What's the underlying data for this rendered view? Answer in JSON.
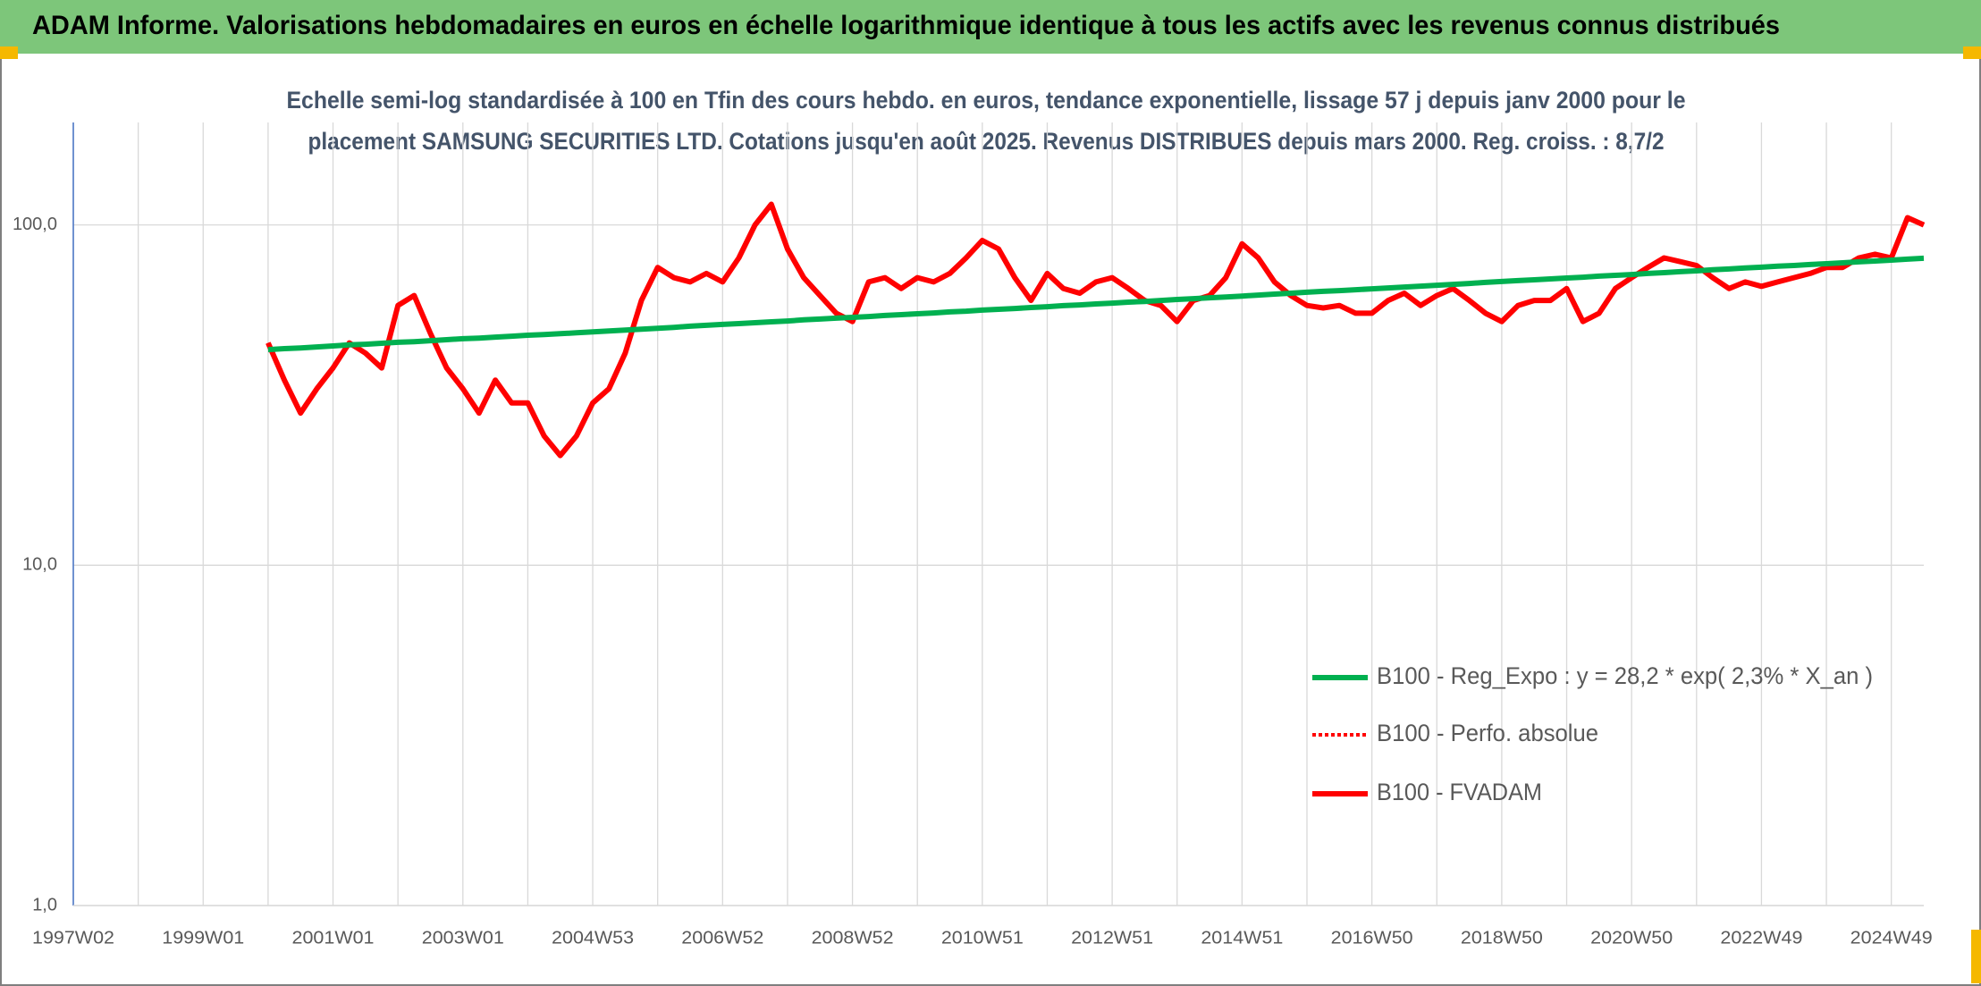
{
  "chart_data": {
    "type": "line",
    "title": "ADAM Informe. Valorisations hebdomadaires en euros en échelle logarithmique identique à tous les actifs avec les revenus connus distribués",
    "subtitle": [
      "Echelle semi-log standardisée à 100 en Tfin des cours hebdo. en euros, tendance exponentielle, lissage 57 j depuis janv 2000 pour le",
      "placement SAMSUNG SECURITIES LTD. Cotations jusqu'en août 2025. Revenus DISTRIBUES depuis mars 2000. Reg. croiss. : 8,7/2"
    ],
    "log_scale": true,
    "grid": true,
    "legend": "lower right",
    "ylim": [
      1,
      200
    ],
    "yticks": [
      {
        "value": 1,
        "label": "1,0"
      },
      {
        "value": 10,
        "label": "10,0"
      },
      {
        "value": 100,
        "label": "100,0"
      }
    ],
    "categories": [
      "1997W02",
      null,
      null,
      null,
      null,
      null,
      null,
      null,
      "1999W01",
      null,
      null,
      null,
      null,
      null,
      null,
      null,
      "2001W01",
      null,
      null,
      null,
      null,
      null,
      null,
      null,
      "2003W01",
      null,
      null,
      null,
      null,
      null,
      null,
      null,
      "2004W53",
      null,
      null,
      null,
      null,
      null,
      null,
      null,
      "2006W52",
      null,
      null,
      null,
      null,
      null,
      null,
      null,
      "2008W52",
      null,
      null,
      null,
      null,
      null,
      null,
      null,
      "2010W51",
      null,
      null,
      null,
      null,
      null,
      null,
      null,
      "2012W51",
      null,
      null,
      null,
      null,
      null,
      null,
      null,
      "2014W51",
      null,
      null,
      null,
      null,
      null,
      null,
      null,
      "2016W50",
      null,
      null,
      null,
      null,
      null,
      null,
      null,
      "2018W50",
      null,
      null,
      null,
      null,
      null,
      null,
      null,
      "2020W50",
      null,
      null,
      null,
      null,
      null,
      null,
      null,
      "2022W49",
      null,
      null,
      null,
      null,
      null,
      null,
      null,
      "2024W49",
      null,
      null
    ],
    "series": [
      {
        "name": "B100 - Reg_Expo : y = 28,2 * exp( 2,3% *  X_an )",
        "color": "#00b050",
        "style": "solid",
        "values": [
          null,
          null,
          null,
          null,
          null,
          null,
          null,
          null,
          null,
          null,
          null,
          null,
          43.0,
          43.3,
          43.5,
          43.8,
          44.1,
          44.4,
          44.6,
          44.9,
          45.2,
          45.4,
          45.7,
          46.0,
          46.3,
          46.5,
          46.8,
          47.1,
          47.4,
          47.6,
          47.9,
          48.2,
          48.5,
          48.8,
          49.1,
          49.4,
          49.7,
          50.0,
          50.4,
          50.7,
          51.0,
          51.3,
          51.6,
          51.9,
          52.2,
          52.6,
          52.9,
          53.2,
          53.5,
          53.8,
          54.2,
          54.5,
          54.8,
          55.1,
          55.5,
          55.8,
          56.2,
          56.5,
          56.8,
          57.2,
          57.5,
          57.9,
          58.2,
          58.6,
          58.9,
          59.3,
          59.6,
          60.0,
          60.4,
          60.7,
          61.1,
          61.4,
          61.8,
          62.2,
          62.6,
          63.0,
          63.4,
          63.8,
          64.1,
          64.5,
          64.9,
          65.3,
          65.7,
          66.1,
          66.5,
          66.9,
          67.3,
          67.8,
          68.2,
          68.6,
          69.0,
          69.4,
          69.8,
          70.2,
          70.7,
          71.1,
          71.5,
          72.0,
          72.4,
          72.9,
          73.3,
          73.8,
          74.2,
          74.7,
          75.1,
          75.6,
          76.0,
          76.5,
          76.9,
          77.4,
          77.9,
          78.3,
          78.8,
          79.3,
          79.8
        ]
      },
      {
        "name": "B100 - Perfo. absolue",
        "color": "#ff0000",
        "style": "dotted",
        "values": [
          null,
          null,
          null,
          null,
          null,
          null,
          null,
          null,
          null,
          null,
          null,
          null,
          45,
          35,
          28,
          33,
          38,
          45,
          42,
          38,
          58,
          62,
          48,
          38,
          33,
          28,
          35,
          30,
          30,
          24,
          21,
          24,
          30,
          33,
          42,
          60,
          75,
          70,
          68,
          72,
          68,
          80,
          100,
          115,
          85,
          70,
          62,
          55,
          52,
          68,
          70,
          65,
          70,
          68,
          72,
          80,
          90,
          85,
          70,
          60,
          72,
          65,
          63,
          68,
          70,
          65,
          60,
          58,
          52,
          60,
          62,
          70,
          88,
          80,
          68,
          62,
          58,
          57,
          58,
          55,
          55,
          60,
          63,
          58,
          62,
          65,
          60,
          55,
          52,
          58,
          60,
          60,
          65,
          52,
          55,
          65,
          70,
          75,
          80,
          78,
          76,
          70,
          65,
          68,
          66,
          68,
          70,
          72,
          75,
          75,
          80,
          82,
          80,
          105,
          100
        ]
      },
      {
        "name": "B100 - FVADAM",
        "color": "#ff0000",
        "style": "solid",
        "values": [
          null,
          null,
          null,
          null,
          null,
          null,
          null,
          null,
          null,
          null,
          null,
          null,
          45,
          35,
          28,
          33,
          38,
          45,
          42,
          38,
          58,
          62,
          48,
          38,
          33,
          28,
          35,
          30,
          30,
          24,
          21,
          24,
          30,
          33,
          42,
          60,
          75,
          70,
          68,
          72,
          68,
          80,
          100,
          115,
          85,
          70,
          62,
          55,
          52,
          68,
          70,
          65,
          70,
          68,
          72,
          80,
          90,
          85,
          70,
          60,
          72,
          65,
          63,
          68,
          70,
          65,
          60,
          58,
          52,
          60,
          62,
          70,
          88,
          80,
          68,
          62,
          58,
          57,
          58,
          55,
          55,
          60,
          63,
          58,
          62,
          65,
          60,
          55,
          52,
          58,
          60,
          60,
          65,
          52,
          55,
          65,
          70,
          75,
          80,
          78,
          76,
          70,
          65,
          68,
          66,
          68,
          70,
          72,
          75,
          75,
          80,
          82,
          80,
          105,
          100
        ]
      }
    ]
  }
}
